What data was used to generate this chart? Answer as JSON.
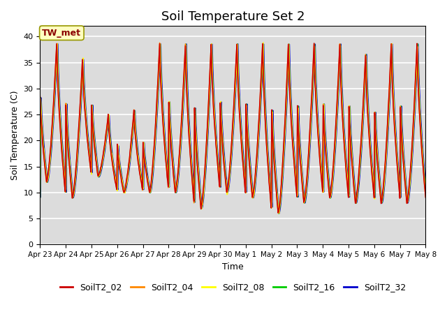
{
  "title": "Soil Temperature Set 2",
  "xlabel": "Time",
  "ylabel": "Soil Temperature (C)",
  "ylim": [
    0,
    42
  ],
  "yticks": [
    0,
    5,
    10,
    15,
    20,
    25,
    30,
    35,
    40
  ],
  "xtick_labels": [
    "Apr 23",
    "Apr 24",
    "Apr 25",
    "Apr 26",
    "Apr 27",
    "Apr 28",
    "Apr 29",
    "Apr 30",
    "May 1",
    "May 2",
    "May 3",
    "May 4",
    "May 5",
    "May 6",
    "May 7",
    "May 8"
  ],
  "series_colors": [
    "#cc0000",
    "#ff8800",
    "#ffff00",
    "#00cc00",
    "#0000cc"
  ],
  "series_names": [
    "SoilT2_02",
    "SoilT2_04",
    "SoilT2_08",
    "SoilT2_16",
    "SoilT2_32"
  ],
  "annotation_text": "TW_met",
  "background_color": "#dcdcdc",
  "plot_bg_color": "#dcdcdc",
  "grid_color": "white",
  "title_fontsize": 13,
  "axis_fontsize": 9,
  "tick_fontsize": 8,
  "legend_fontsize": 9,
  "n_points_per_day": 48,
  "n_days": 15,
  "daily_peaks": [
    39,
    36,
    25,
    26,
    39,
    39,
    39,
    39,
    39,
    39,
    39,
    39,
    37,
    39,
    39
  ],
  "daily_mins": [
    12,
    9,
    13,
    10,
    10,
    10,
    7,
    10,
    9,
    6,
    8,
    9,
    8,
    8,
    8
  ]
}
